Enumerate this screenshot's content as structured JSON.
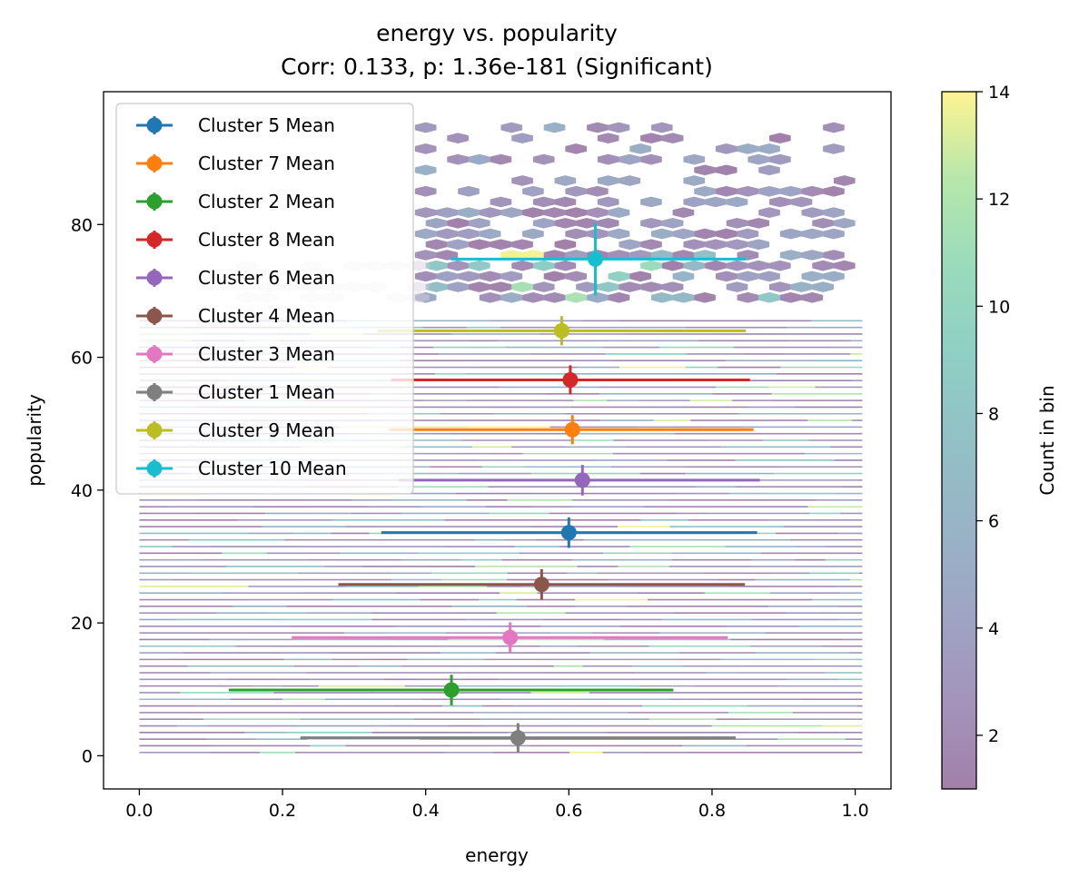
{
  "chart_data": {
    "type": "scatter",
    "title": "energy vs. popularity",
    "subtitle": "Corr: 0.133, p: 1.36e-181 (Significant)",
    "xlabel": "energy",
    "ylabel": "popularity",
    "xlim": [
      -0.05,
      1.05
    ],
    "ylim": [
      -5,
      100
    ],
    "xticks": [
      "0.0",
      "0.2",
      "0.4",
      "0.6",
      "0.8",
      "1.0"
    ],
    "yticks": [
      "0",
      "20",
      "40",
      "60",
      "80"
    ],
    "grid": false,
    "legend_position": "upper-left",
    "background": {
      "type": "hexbin",
      "colormap": "viridis",
      "alpha": 0.5,
      "dense_rows_y_range": [
        0,
        66
      ],
      "top_cluster_y_range": [
        69,
        95
      ],
      "top_cluster_x_range": [
        0.4,
        0.98
      ]
    },
    "colorbar": {
      "label": "Count in bin",
      "range": [
        1,
        14
      ],
      "ticks": [
        "2",
        "4",
        "6",
        "8",
        "10",
        "12",
        "14"
      ]
    },
    "series": [
      {
        "name": "Cluster 5 Mean",
        "color": "#1f77b4",
        "x": 0.6,
        "y": 33.6,
        "x_err_low": 0.338,
        "x_err_high": 0.863,
        "y_err": 2.3
      },
      {
        "name": "Cluster 7 Mean",
        "color": "#ff7f0e",
        "x": 0.605,
        "y": 49.1,
        "x_err_low": 0.35,
        "x_err_high": 0.858,
        "y_err": 2.2
      },
      {
        "name": "Cluster 2 Mean",
        "color": "#2ca02c",
        "x": 0.436,
        "y": 9.9,
        "x_err_low": 0.125,
        "x_err_high": 0.746,
        "y_err": 2.3
      },
      {
        "name": "Cluster 8 Mean",
        "color": "#d62728",
        "x": 0.602,
        "y": 56.6,
        "x_err_low": 0.352,
        "x_err_high": 0.853,
        "y_err": 2.2
      },
      {
        "name": "Cluster 6 Mean",
        "color": "#9467bd",
        "x": 0.619,
        "y": 41.5,
        "x_err_low": 0.362,
        "x_err_high": 0.867,
        "y_err": 2.3
      },
      {
        "name": "Cluster 4 Mean",
        "color": "#8c564b",
        "x": 0.562,
        "y": 25.8,
        "x_err_low": 0.278,
        "x_err_high": 0.846,
        "y_err": 2.3
      },
      {
        "name": "Cluster 3 Mean",
        "color": "#e377c2",
        "x": 0.518,
        "y": 17.8,
        "x_err_low": 0.213,
        "x_err_high": 0.822,
        "y_err": 2.3
      },
      {
        "name": "Cluster 1 Mean",
        "color": "#7f7f7f",
        "x": 0.529,
        "y": 2.7,
        "x_err_low": 0.225,
        "x_err_high": 0.833,
        "y_err": 2.2
      },
      {
        "name": "Cluster 9 Mean",
        "color": "#bcbd22",
        "x": 0.59,
        "y": 64.0,
        "x_err_low": 0.333,
        "x_err_high": 0.847,
        "y_err": 2.2
      },
      {
        "name": "Cluster 10 Mean",
        "color": "#17becf",
        "x": 0.637,
        "y": 74.8,
        "x_err_low": 0.435,
        "x_err_high": 0.848,
        "y_err": 5.5
      }
    ]
  }
}
